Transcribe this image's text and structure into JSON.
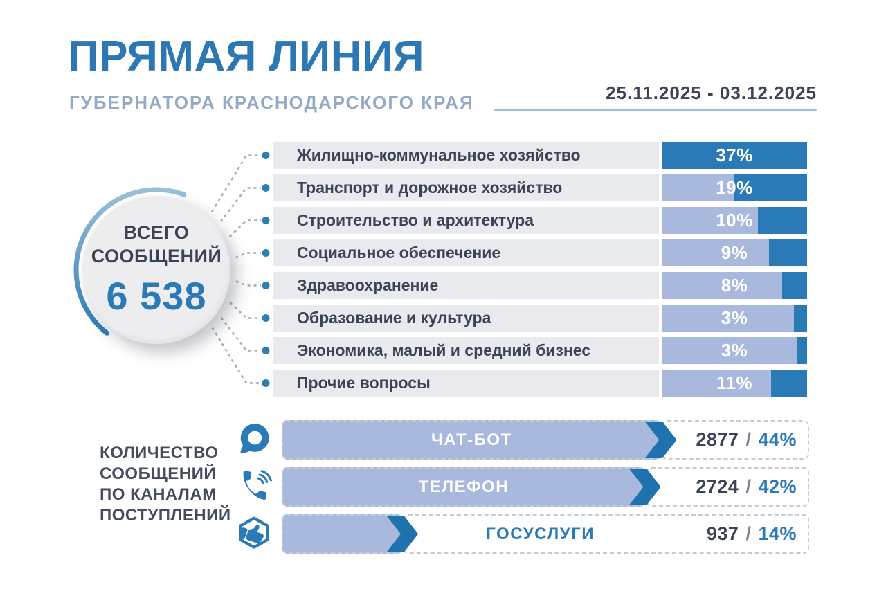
{
  "header": {
    "title": "ПРЯМАЯ ЛИНИЯ",
    "subtitle": "ГУБЕРНАТОРА КРАСНОДАРСКОГО КРАЯ",
    "period": "25.11.2025 - 03.12.2025"
  },
  "total": {
    "label_line1": "ВСЕГО",
    "label_line2": "СООБЩЕНИЙ",
    "value": "6 538"
  },
  "channels_section": {
    "label": "КОЛИЧЕСТВО\nСООБЩЕНИЙ\nПО КАНАЛАМ\nПОСТУПЛЕНИЙ"
  },
  "colors": {
    "title_blue": "#2d78b2",
    "subtitle_blue_gray": "#94a9c6",
    "dark_text": "#3b4354",
    "accent_blue": "#2b7ab8",
    "arrow_blue": "#1f72ae",
    "periwinkle": "#a9b8dd",
    "row_gray": "#e8eaee",
    "dot_blue": "#2d7eb3",
    "wire_gray": "#a3abb6"
  },
  "chart_data": [
    {
      "type": "bar",
      "orientation": "horizontal",
      "categories": [
        "Жилищно-коммунальное хозяйство",
        "Транспорт и дорожное хозяйство",
        "Строительство и архитектура",
        "Социальное обеспечение",
        "Здравоохранение",
        "Образование и культура",
        "Экономика, малый и средний бизнес",
        "Прочие вопросы"
      ],
      "values": [
        37,
        19,
        10,
        9,
        8,
        3,
        3,
        11
      ],
      "unit": "%",
      "accent_fill_fractions": [
        1,
        0.5,
        0.34,
        0.26,
        0.17,
        0.09,
        0.07,
        0.25
      ],
      "legend": "off",
      "grid": "off"
    },
    {
      "type": "bar",
      "orientation": "horizontal",
      "categories": [
        "ЧАТ-БОТ",
        "ТЕЛЕФОН",
        "ГОСУСЛУГИ"
      ],
      "series": [
        {
          "name": "messages",
          "values": [
            2877,
            2724,
            937
          ]
        },
        {
          "name": "percent",
          "values": [
            44,
            42,
            14
          ]
        }
      ],
      "unit_percent": "%",
      "value_separator": "/",
      "bar_fill_fractions": [
        0.72,
        0.69,
        0.23
      ],
      "icons": [
        "chat-bubble-icon",
        "phone-icon",
        "thumbs-up-hexagon-icon"
      ],
      "label_in_fill": [
        true,
        true,
        false
      ],
      "legend": "off",
      "grid": "off"
    }
  ]
}
